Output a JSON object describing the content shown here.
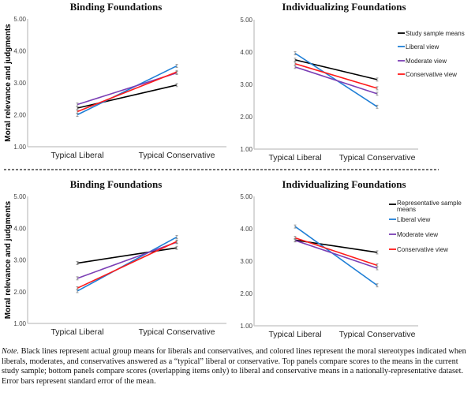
{
  "chart_data": [
    {
      "type": "line",
      "title": "Binding Foundations",
      "ylabel": "Moral relevance and judgments",
      "categories": [
        "Typical Liberal",
        "Typical Conservative"
      ],
      "ylim": [
        1,
        5
      ],
      "yticks": [
        "1.00",
        "2.00",
        "3.00",
        "4.00",
        "5.00"
      ],
      "series": [
        {
          "name": "Study sample means",
          "color": "#000000",
          "values": [
            2.21,
            2.93
          ]
        },
        {
          "name": "Liberal view",
          "color": "#1f7fd6",
          "values": [
            2.0,
            3.53
          ]
        },
        {
          "name": "Moderate view",
          "color": "#7b3fb5",
          "values": [
            2.32,
            3.31
          ]
        },
        {
          "name": "Conservative view",
          "color": "#ff1a1a",
          "values": [
            2.1,
            3.34
          ]
        }
      ]
    },
    {
      "type": "line",
      "title": "Individualizing Foundations",
      "categories": [
        "Typical Liberal",
        "Typical Conservative"
      ],
      "ylim": [
        1,
        5
      ],
      "yticks": [
        "1.00",
        "2.00",
        "3.00",
        "4.00",
        "5.00"
      ],
      "legend": "right",
      "series": [
        {
          "name": "Study sample means",
          "color": "#000000",
          "values": [
            3.76,
            3.15
          ]
        },
        {
          "name": "Liberal view",
          "color": "#1f7fd6",
          "values": [
            3.96,
            2.31
          ]
        },
        {
          "name": "Moderate view",
          "color": "#7b3fb5",
          "values": [
            3.54,
            2.71
          ]
        },
        {
          "name": "Conservative view",
          "color": "#ff1a1a",
          "values": [
            3.64,
            2.88
          ]
        }
      ]
    },
    {
      "type": "line",
      "title": "Binding Foundations",
      "ylabel": "Moral relevance and judgments",
      "categories": [
        "Typical Liberal",
        "Typical Conservative"
      ],
      "ylim": [
        1,
        5
      ],
      "yticks": [
        "1.00",
        "2.00",
        "3.00",
        "4.00",
        "5.00"
      ],
      "series": [
        {
          "name": "Representative sample means",
          "color": "#000000",
          "values": [
            2.9,
            3.38
          ]
        },
        {
          "name": "Liberal view",
          "color": "#1f7fd6",
          "values": [
            2.02,
            3.72
          ]
        },
        {
          "name": "Moderate view",
          "color": "#7b3fb5",
          "values": [
            2.42,
            3.56
          ]
        },
        {
          "name": "Conservative view",
          "color": "#ff1a1a",
          "values": [
            2.11,
            3.58
          ]
        }
      ]
    },
    {
      "type": "line",
      "title": "Individualizing Foundations",
      "categories": [
        "Typical Liberal",
        "Typical Conservative"
      ],
      "ylim": [
        1,
        5
      ],
      "yticks": [
        "1.00",
        "2.00",
        "3.00",
        "4.00",
        "5.00"
      ],
      "legend": "right",
      "series": [
        {
          "name": "Representative sample means",
          "color": "#000000",
          "values": [
            3.65,
            3.27
          ]
        },
        {
          "name": "Liberal view",
          "color": "#1f7fd6",
          "values": [
            4.07,
            2.25
          ]
        },
        {
          "name": "Moderate view",
          "color": "#7b3fb5",
          "values": [
            3.64,
            2.78
          ]
        },
        {
          "name": "Conservative view",
          "color": "#ff1a1a",
          "values": [
            3.72,
            2.87
          ]
        }
      ]
    }
  ],
  "note": {
    "label": "Note.",
    "text": " Black lines represent actual group means for liberals and conservatives, and colored lines represent the moral stereotypes indicated when liberals, moderates, and conservatives answered as a “typical” liberal or conservative. Top panels compare scores to the means in the current study sample; bottom panels compare scores (overlapping items only) to liberal and conservative means in a nationally-representative dataset. Error bars represent standard error of the mean."
  }
}
